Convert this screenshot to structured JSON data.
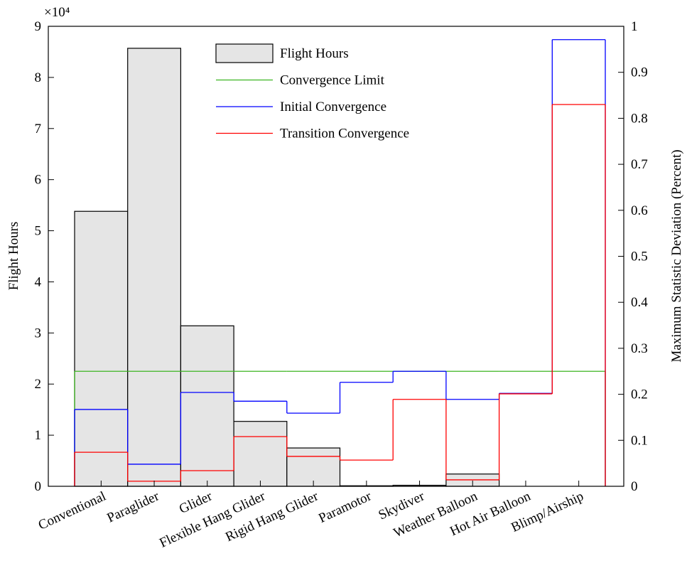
{
  "chart_data": {
    "type": "bar",
    "y_multiplier": "×10⁴",
    "ylabel": "Flight Hours",
    "y2label": "Maximum Statistic Deviation (Percent)",
    "categories": [
      "Conventional",
      "Paraglider",
      "Glider",
      "Flexible Hang Glider",
      "Rigid Hang Glider",
      "Paramotor",
      "Skydiver",
      "Weather Balloon",
      "Hot Air Balloon",
      "Blimp/Airship"
    ],
    "series": [
      {
        "name": "Flight Hours",
        "type": "bar",
        "color": "#e5e5e5",
        "values": [
          5.38,
          8.57,
          3.14,
          1.27,
          0.75,
          0.01,
          0.02,
          0.24,
          0,
          0
        ]
      },
      {
        "name": "Convergence Limit",
        "type": "step",
        "axis": "y2",
        "color": "#3cb521",
        "values": [
          0.25,
          0.25,
          0.25,
          0.25,
          0.25,
          0.25,
          0.25,
          0.25,
          0.25,
          0.25
        ]
      },
      {
        "name": "Initial Convergence",
        "type": "step",
        "axis": "y2",
        "color": "#0000ff",
        "values": [
          0.167,
          0.048,
          0.204,
          0.185,
          0.159,
          0.226,
          0.25,
          0.189,
          0.202,
          0.971
        ]
      },
      {
        "name": "Transition Convergence",
        "type": "step",
        "axis": "y2",
        "color": "#ff0000",
        "values": [
          0.074,
          0.011,
          0.034,
          0.108,
          0.065,
          0.057,
          0.189,
          0.014,
          0.201,
          0.83
        ]
      }
    ],
    "ylim": [
      0,
      9
    ],
    "yticks": [
      0,
      1,
      2,
      3,
      4,
      5,
      6,
      7,
      8,
      9
    ],
    "y2lim": [
      0,
      1
    ],
    "y2ticks": [
      0,
      0.1,
      0.2,
      0.3,
      0.4,
      0.5,
      0.6,
      0.7,
      0.8,
      0.9,
      1
    ],
    "legend": "top"
  }
}
